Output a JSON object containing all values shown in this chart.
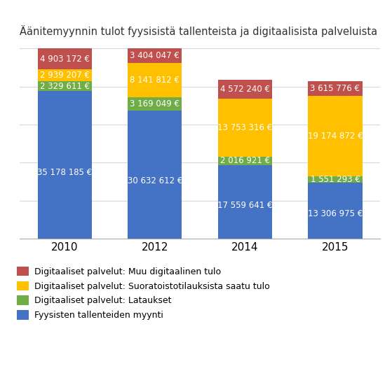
{
  "title": "Äänitemyynnin tulot fyysisistä tallenteista ja digitaalisista palveluista",
  "years": [
    "2010",
    "2012",
    "2014",
    "2015"
  ],
  "physical": [
    35178185,
    30632612,
    17559641,
    13306975
  ],
  "downloads": [
    2329611,
    3169049,
    2016921,
    1551293
  ],
  "streaming": [
    2939207,
    8141812,
    13753316,
    19174872
  ],
  "other_digital": [
    4903172,
    3404047,
    4572240,
    3615776
  ],
  "labels_physical": [
    "35 178 185 €",
    "30 632 612 €",
    "17 559 641 €",
    "13 306 975 €"
  ],
  "labels_downloads": [
    "2 329 611 €",
    "3 169 049 €",
    "2 016 921 €",
    "1 551 293 €"
  ],
  "labels_streaming": [
    "2 939 207 €",
    "8 141 812 €",
    "13 753 316 €",
    "19 174 872 €"
  ],
  "labels_other": [
    "4 903 172 €",
    "3 404 047 €",
    "4 572 240 €",
    "3 615 776 €"
  ],
  "color_physical": "#4472C4",
  "color_downloads": "#70AD47",
  "color_streaming": "#FFC000",
  "color_other": "#C0504D",
  "legend_colors_display": [
    "#C0504D",
    "#FFC000",
    "#70AD47",
    "#4472C4"
  ],
  "legend_labels": [
    "Digitaaliset palvelut: Muu digitaalinen tulo",
    "Digitaaliset palvelut: Suoratoistotilauksista saatu tulo",
    "Digitaaliset palvelut: Lataukset",
    "Fyysisten tallenteiden myynti"
  ],
  "bar_width": 0.6,
  "background_color": "#FFFFFF",
  "text_color_white": "#FFFFFF",
  "font_size_label": 8.5,
  "font_size_title": 10.5,
  "font_size_legend": 9,
  "font_size_tick": 11,
  "gridline_color": "#D9D9D9"
}
